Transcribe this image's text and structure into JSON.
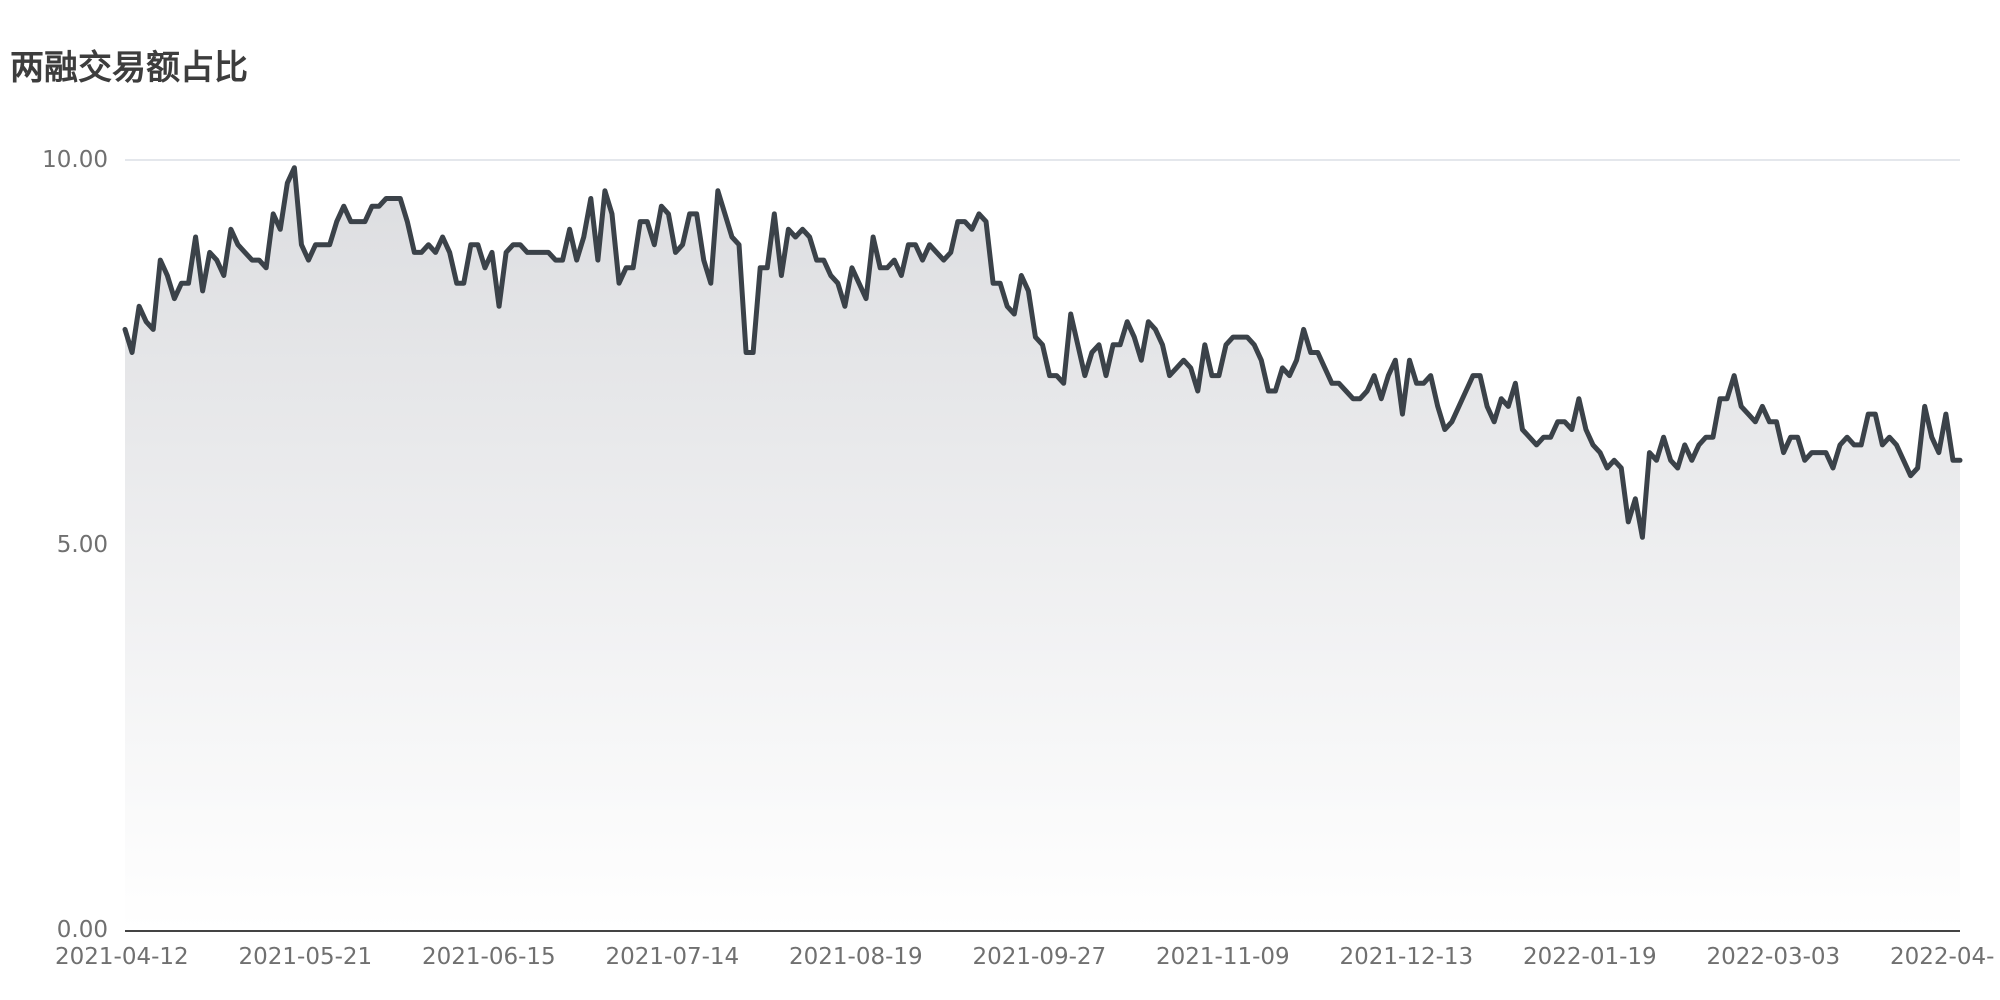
{
  "chart_data": {
    "type": "area",
    "title": "两融交易额占比",
    "xlabel": "",
    "ylabel": "",
    "ylim": [
      0,
      10
    ],
    "y_ticks": [
      {
        "value": 0,
        "label": "0.00"
      },
      {
        "value": 5,
        "label": "5.00"
      },
      {
        "value": 10,
        "label": "10.00"
      }
    ],
    "x_tick_labels": [
      "2021-04-12",
      "2021-05-21",
      "2021-06-15",
      "2021-07-14",
      "2021-08-19",
      "2021-09-27",
      "2021-11-09",
      "2021-12-13",
      "2022-01-19",
      "2022-03-03",
      "2022-04-"
    ],
    "grid": "horizontal",
    "legend": "none",
    "colors": {
      "line": "#3b4249",
      "fill_top": "#dcdde0",
      "fill_bottom": "#ffffff",
      "grid": "#dcdfe6",
      "axis": "#444444"
    },
    "series": [
      {
        "values": [
          7.8,
          7.5,
          8.1,
          7.9,
          7.8,
          8.7,
          8.5,
          8.2,
          8.4,
          8.4,
          9.0,
          8.3,
          8.8,
          8.7,
          8.5,
          9.1,
          8.9,
          8.8,
          8.7,
          8.7,
          8.6,
          9.3,
          9.1,
          9.7,
          9.9,
          8.9,
          8.7,
          8.9,
          8.9,
          8.9,
          9.2,
          9.4,
          9.2,
          9.2,
          9.2,
          9.4,
          9.4,
          9.5,
          9.5,
          9.5,
          9.2,
          8.8,
          8.8,
          8.9,
          8.8,
          9.0,
          8.8,
          8.4,
          8.4,
          8.9,
          8.9,
          8.6,
          8.8,
          8.1,
          8.8,
          8.9,
          8.9,
          8.8,
          8.8,
          8.8,
          8.8,
          8.7,
          8.7,
          9.1,
          8.7,
          9.0,
          9.5,
          8.7,
          9.6,
          9.3,
          8.4,
          8.6,
          8.6,
          9.2,
          9.2,
          8.9,
          9.4,
          9.3,
          8.8,
          8.9,
          9.3,
          9.3,
          8.7,
          8.4,
          9.6,
          9.3,
          9.0,
          8.9,
          7.5,
          7.5,
          8.6,
          8.6,
          9.3,
          8.5,
          9.1,
          9.0,
          9.1,
          9.0,
          8.7,
          8.7,
          8.5,
          8.4,
          8.1,
          8.6,
          8.4,
          8.2,
          9.0,
          8.6,
          8.6,
          8.7,
          8.5,
          8.9,
          8.9,
          8.7,
          8.9,
          8.8,
          8.7,
          8.8,
          9.2,
          9.2,
          9.1,
          9.3,
          9.2,
          8.4,
          8.4,
          8.1,
          8.0,
          8.5,
          8.3,
          7.7,
          7.6,
          7.2,
          7.2,
          7.1,
          8.0,
          7.6,
          7.2,
          7.5,
          7.6,
          7.2,
          7.6,
          7.6,
          7.9,
          7.7,
          7.4,
          7.9,
          7.8,
          7.6,
          7.2,
          7.3,
          7.4,
          7.3,
          7.0,
          7.6,
          7.2,
          7.2,
          7.6,
          7.7,
          7.7,
          7.7,
          7.6,
          7.4,
          7.0,
          7.0,
          7.3,
          7.2,
          7.4,
          7.8,
          7.5,
          7.5,
          7.3,
          7.1,
          7.1,
          7.0,
          6.9,
          6.9,
          7.0,
          7.2,
          6.9,
          7.2,
          7.4,
          6.7,
          7.4,
          7.1,
          7.1,
          7.2,
          6.8,
          6.5,
          6.6,
          6.8,
          7.0,
          7.2,
          7.2,
          6.8,
          6.6,
          6.9,
          6.8,
          7.1,
          6.5,
          6.4,
          6.3,
          6.4,
          6.4,
          6.6,
          6.6,
          6.5,
          6.9,
          6.5,
          6.3,
          6.2,
          6.0,
          6.1,
          6.0,
          5.3,
          5.6,
          5.1,
          6.2,
          6.1,
          6.4,
          6.1,
          6.0,
          6.3,
          6.1,
          6.3,
          6.4,
          6.4,
          6.9,
          6.9,
          7.2,
          6.8,
          6.7,
          6.6,
          6.8,
          6.6,
          6.6,
          6.2,
          6.4,
          6.4,
          6.1,
          6.2,
          6.2,
          6.2,
          6.0,
          6.3,
          6.4,
          6.3,
          6.3,
          6.7,
          6.7,
          6.3,
          6.4,
          6.3,
          6.1,
          5.9,
          6.0,
          6.8,
          6.4,
          6.2,
          6.7,
          6.1,
          6.1
        ]
      }
    ]
  }
}
